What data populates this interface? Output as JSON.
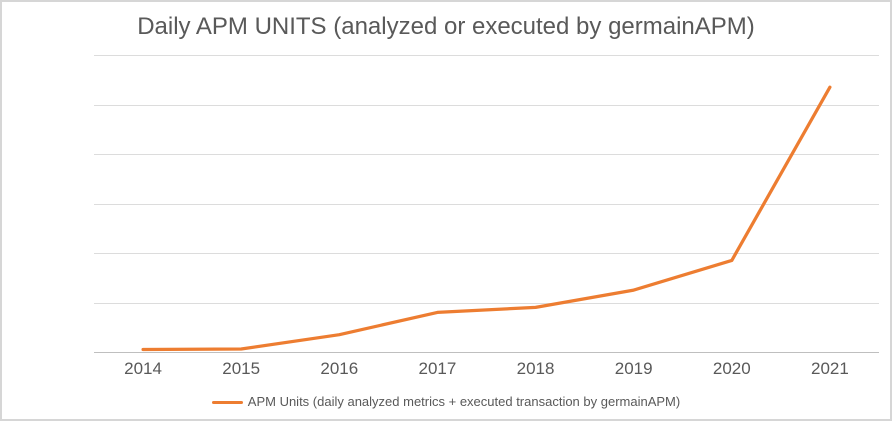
{
  "chart_data": {
    "type": "line",
    "title": "Daily APM UNITS (analyzed or executed by germainAPM)",
    "categories": [
      "2014",
      "2015",
      "2016",
      "2017",
      "2018",
      "2019",
      "2020",
      "2021"
    ],
    "series": [
      {
        "name": "APM Units (daily analyzed metrics + executed transaction by germainAPM)",
        "values": [
          5,
          6,
          35,
          80,
          90,
          125,
          185,
          535
        ],
        "color": "#ED7D31"
      }
    ],
    "xlabel": "",
    "ylabel": "",
    "ylim": [
      0,
      600
    ],
    "y_gridline_interval": 100,
    "y_tick_labels_visible": false,
    "grid": true,
    "legend_position": "bottom",
    "legend_marker": "line"
  },
  "styles": {
    "title_color": "#595959",
    "axis_label_color": "#595959",
    "legend_text_color": "#595959",
    "gridline_color": "#DCDCDC",
    "axis_line_color": "#BFBFBF",
    "background": "#FFFFFF",
    "frame_border_color": "#D6D6D6"
  }
}
